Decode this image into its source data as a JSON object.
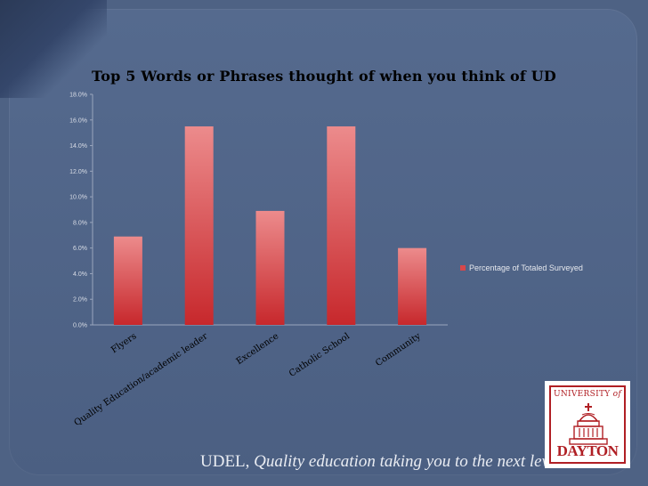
{
  "slide": {
    "footer": {
      "brand": "UDEL,",
      "tagline": "Quality education taking you to the next level"
    },
    "logo": {
      "line1": "UNIVERSITY",
      "line1_suffix": "of",
      "line2": "DAYTON",
      "color": "#b01f24"
    },
    "background_color": "#4e6284"
  },
  "chart_data": {
    "type": "bar",
    "title": "Top 5 Words or Phrases thought of when you think of UD",
    "categories": [
      "Flyers",
      "Quality Education/academic leader",
      "Excellence",
      "Catholic School",
      "Community"
    ],
    "series": [
      {
        "name": "Percentage of Totaled Surveyed",
        "values": [
          6.9,
          15.5,
          8.9,
          15.5,
          6.0
        ],
        "color": "#d8474a"
      }
    ],
    "yticks": [
      "0.0%",
      "2.0%",
      "4.0%",
      "6.0%",
      "8.0%",
      "10.0%",
      "12.0%",
      "14.0%",
      "16.0%",
      "18.0%"
    ],
    "ylim": [
      0,
      18
    ],
    "grid": false,
    "legend_position": "right"
  }
}
